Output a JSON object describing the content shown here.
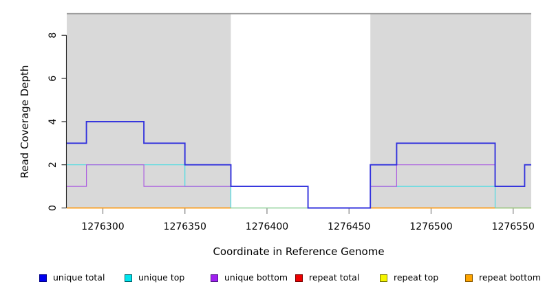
{
  "chart_data": {
    "type": "line",
    "subtype": "step-coverage-pileup",
    "title": "",
    "xlabel": "Coordinate in Reference Genome",
    "ylabel": "Read Coverage Depth",
    "xlim": [
      1276278,
      1276561
    ],
    "ylim": [
      0,
      9
    ],
    "x_ticks": [
      1276300,
      1276350,
      1276400,
      1276450,
      1276500,
      1276550
    ],
    "y_ticks": [
      0,
      2,
      4,
      6,
      8
    ],
    "grid": false,
    "legend_position": "bottom",
    "shaded_regions": [
      {
        "x0": 1276278,
        "x1": 1276378,
        "color": "#d9d9d9"
      },
      {
        "x0": 1276463,
        "x1": 1276561,
        "color": "#d9d9d9"
      }
    ],
    "top_border_line": {
      "y": 9,
      "color": "#9d9d9d"
    },
    "series": [
      {
        "name": "repeat total",
        "color": "#ee0000",
        "width": 1.2,
        "in_legend": true,
        "note": "constant 0 across plotted ranges, hidden beneath other zero-depth lines",
        "segments": [
          [
            [
              1276278,
              0
            ],
            [
              1276378,
              0
            ]
          ],
          [
            [
              1276463,
              0
            ],
            [
              1276561,
              0
            ]
          ]
        ]
      },
      {
        "name": "repeat top",
        "color": "#f2f200",
        "width": 1.2,
        "in_legend": true,
        "note": "constant 0 across plotted ranges, hidden beneath other zero-depth lines",
        "segments": [
          [
            [
              1276278,
              0
            ],
            [
              1276378,
              0
            ]
          ],
          [
            [
              1276463,
              0
            ],
            [
              1276561,
              0
            ]
          ]
        ]
      },
      {
        "name": "repeat bottom",
        "color": "#ff9c14",
        "width": 1.6,
        "in_legend": true,
        "segments": [
          [
            [
              1276278,
              0
            ],
            [
              1276378,
              0
            ]
          ],
          [
            [
              1276463,
              0
            ],
            [
              1276539,
              0
            ]
          ]
        ]
      },
      {
        "name": "zero-depth overlap",
        "color": "#8ecf97",
        "width": 1.5,
        "in_legend": false,
        "note": "pale green blend where unique-top and repeat lines coincide at depth 0",
        "segments": [
          [
            [
              1276378,
              0
            ],
            [
              1276425,
              0
            ]
          ],
          [
            [
              1276539,
              0
            ],
            [
              1276561,
              0
            ]
          ]
        ]
      },
      {
        "name": "unique top",
        "color": "#4cdce2",
        "width": 1.2,
        "in_legend": true,
        "segments": [
          [
            [
              1276278,
              2
            ],
            [
              1276350,
              2
            ],
            [
              1276350,
              1
            ],
            [
              1276378,
              1
            ],
            [
              1276378,
              0
            ]
          ],
          [
            [
              1276463,
              1
            ],
            [
              1276539,
              1
            ],
            [
              1276539,
              0
            ]
          ]
        ]
      },
      {
        "name": "unique bottom",
        "color": "#ab5ce0",
        "width": 1.2,
        "in_legend": true,
        "segments": [
          [
            [
              1276278,
              1
            ],
            [
              1276290,
              1
            ],
            [
              1276290,
              2
            ],
            [
              1276325,
              2
            ],
            [
              1276325,
              1
            ],
            [
              1276378,
              1
            ]
          ],
          [
            [
              1276463,
              1
            ],
            [
              1276479,
              1
            ],
            [
              1276479,
              2
            ],
            [
              1276539,
              2
            ]
          ]
        ]
      },
      {
        "name": "unique total",
        "color": "#3232dd",
        "width": 1.9,
        "in_legend": true,
        "segments": [
          [
            [
              1276278,
              3
            ],
            [
              1276290,
              3
            ],
            [
              1276290,
              4
            ],
            [
              1276325,
              4
            ],
            [
              1276325,
              3
            ],
            [
              1276350,
              3
            ],
            [
              1276350,
              2
            ],
            [
              1276378,
              2
            ],
            [
              1276378,
              1
            ],
            [
              1276425,
              1
            ],
            [
              1276425,
              0
            ],
            [
              1276463,
              0
            ],
            [
              1276463,
              2
            ],
            [
              1276479,
              2
            ],
            [
              1276479,
              3
            ],
            [
              1276539,
              3
            ],
            [
              1276539,
              1
            ],
            [
              1276557,
              1
            ],
            [
              1276557,
              2
            ],
            [
              1276561,
              2
            ]
          ]
        ]
      }
    ],
    "legend": [
      {
        "label": "unique total",
        "fill": "#0000ee",
        "border": "#00008b"
      },
      {
        "label": "unique top",
        "fill": "#00e5ee",
        "border": "#00666e"
      },
      {
        "label": "unique bottom",
        "fill": "#a020f0",
        "border": "#551a8b"
      },
      {
        "label": "repeat total",
        "fill": "#ee0000",
        "border": "#7d0000"
      },
      {
        "label": "repeat top",
        "fill": "#f5f500",
        "border": "#7d7d00"
      },
      {
        "label": "repeat bottom",
        "fill": "#ffa500",
        "border": "#8b5a00"
      }
    ]
  }
}
